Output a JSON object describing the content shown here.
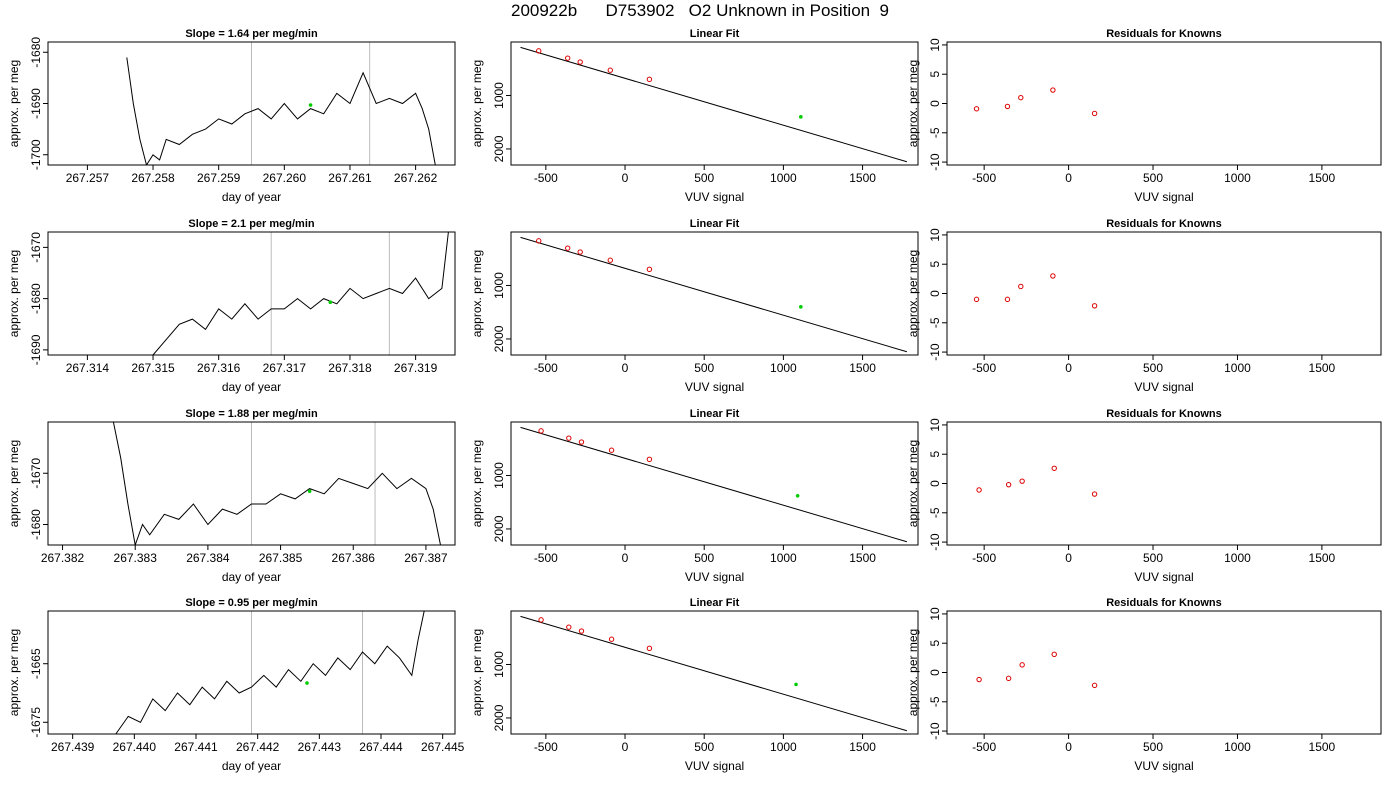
{
  "page_title": "200922b      D753902   O2 Unknown in Position  9",
  "chart_data": [
    {
      "type": "line",
      "panel": "series",
      "title": "Slope =  1.64  per meg/min",
      "xlabel": "day of year",
      "ylabel": "approx. per meg",
      "xlim": [
        267.2564,
        267.2626
      ],
      "ylim": [
        -1702,
        -1678
      ],
      "xticks": [
        267.257,
        267.258,
        267.259,
        267.26,
        267.261,
        267.262
      ],
      "xtick_labels": [
        "267.257",
        "267.258",
        "267.259",
        "267.260",
        "267.261",
        "267.262"
      ],
      "yticks": [
        -1700,
        -1690,
        -1680
      ],
      "ytick_labels": [
        "-1700",
        "-1690",
        "-1680"
      ],
      "vlines": [
        267.2595,
        267.2613
      ],
      "marker": {
        "x": 267.2604,
        "y": -1690.3,
        "color": "#00cc00"
      },
      "series": [
        {
          "x": [
            267.2576,
            267.2577,
            267.2578,
            267.2579,
            267.258,
            267.2581,
            267.2582,
            267.2584,
            267.2586,
            267.2588,
            267.259,
            267.2592,
            267.2594,
            267.2596,
            267.2598,
            267.26,
            267.2602,
            267.2604,
            267.2606,
            267.2608,
            267.261,
            267.2612,
            267.2614,
            267.2616,
            267.2618,
            267.262,
            267.2621,
            267.2622,
            267.2623
          ],
          "y": [
            -1681,
            -1690,
            -1697,
            -1702,
            -1700,
            -1701,
            -1697,
            -1698,
            -1696,
            -1695,
            -1693,
            -1694,
            -1692,
            -1691,
            -1693,
            -1690,
            -1693,
            -1691,
            -1692,
            -1688,
            -1690,
            -1684,
            -1690,
            -1689,
            -1690,
            -1688,
            -1691,
            -1695,
            -1702
          ]
        }
      ]
    },
    {
      "type": "line",
      "panel": "fit",
      "title": "Linear Fit",
      "xlabel": "VUV signal",
      "ylabel": "approx. per meg",
      "xlim": [
        -720,
        1850
      ],
      "ylim": [
        -2300,
        0
      ],
      "xticks": [
        -500,
        0,
        500,
        1000,
        1500
      ],
      "xtick_labels": [
        "-500",
        "0",
        "500",
        "1000",
        "1500"
      ],
      "yticks": [
        -2000,
        -1000
      ],
      "ytick_labels": [
        "2000",
        "1000"
      ],
      "line": [
        [
          -660,
          -100
        ],
        [
          1780,
          -2240
        ]
      ],
      "knowns": [
        [
          -545,
          -166
        ],
        [
          -362,
          -302
        ],
        [
          -283,
          -375
        ],
        [
          -93,
          -528
        ],
        [
          154,
          -698
        ]
      ],
      "unknown": [
        1110,
        -1399
      ]
    },
    {
      "type": "scatter",
      "panel": "residuals",
      "title": "Residuals for Knowns",
      "xlabel": "VUV signal",
      "ylabel": "approx. per meg",
      "xlim": [
        -720,
        1850
      ],
      "ylim": [
        -10.5,
        10.5
      ],
      "xticks": [
        -500,
        0,
        500,
        1000,
        1500
      ],
      "xtick_labels": [
        "-500",
        "0",
        "500",
        "1000",
        "1500"
      ],
      "yticks": [
        -10,
        -5,
        0,
        5,
        10
      ],
      "ytick_labels": [
        "-10",
        "-5",
        "0",
        "5",
        "10"
      ],
      "points": [
        [
          -545,
          -0.9
        ],
        [
          -362,
          -0.5
        ],
        [
          -283,
          1.0
        ],
        [
          -93,
          2.3
        ],
        [
          154,
          -1.7
        ]
      ]
    },
    {
      "type": "line",
      "panel": "series",
      "title": "Slope =  2.1  per meg/min",
      "xlabel": "day of year",
      "ylabel": "approx. per meg",
      "xlim": [
        267.3134,
        267.3196
      ],
      "ylim": [
        -1691,
        -1667
      ],
      "xticks": [
        267.314,
        267.315,
        267.316,
        267.317,
        267.318,
        267.319
      ],
      "xtick_labels": [
        "267.314",
        "267.315",
        "267.316",
        "267.317",
        "267.318",
        "267.319"
      ],
      "yticks": [
        -1690,
        -1680,
        -1670
      ],
      "ytick_labels": [
        "-1690",
        "-1680",
        "-1670"
      ],
      "vlines": [
        267.3168,
        267.3186
      ],
      "marker": {
        "x": 267.3177,
        "y": -1680.7,
        "color": "#00cc00"
      },
      "series": [
        {
          "x": [
            267.315,
            267.3152,
            267.3154,
            267.3156,
            267.3158,
            267.316,
            267.3162,
            267.3164,
            267.3166,
            267.3168,
            267.317,
            267.3172,
            267.3174,
            267.3176,
            267.3178,
            267.318,
            267.3182,
            267.3184,
            267.3186,
            267.3188,
            267.319,
            267.3192,
            267.3194,
            267.3195
          ],
          "y": [
            -1691,
            -1688,
            -1685,
            -1684,
            -1686,
            -1682,
            -1684,
            -1681,
            -1684,
            -1682,
            -1682,
            -1680,
            -1682,
            -1680,
            -1681,
            -1678,
            -1680,
            -1679,
            -1678,
            -1679,
            -1676,
            -1680,
            -1678,
            -1667
          ]
        }
      ]
    },
    {
      "type": "line",
      "panel": "fit",
      "title": "Linear Fit",
      "xlabel": "VUV signal",
      "ylabel": "approx. per meg",
      "xlim": [
        -720,
        1850
      ],
      "ylim": [
        -2300,
        0
      ],
      "xticks": [
        -500,
        0,
        500,
        1000,
        1500
      ],
      "xtick_labels": [
        "-500",
        "0",
        "500",
        "1000",
        "1500"
      ],
      "yticks": [
        -2000,
        -1000
      ],
      "ytick_labels": [
        "2000",
        "1000"
      ],
      "line": [
        [
          -660,
          -100
        ],
        [
          1780,
          -2240
        ]
      ],
      "knowns": [
        [
          -545,
          -166
        ],
        [
          -362,
          -302
        ],
        [
          -283,
          -375
        ],
        [
          -93,
          -528
        ],
        [
          154,
          -698
        ]
      ],
      "unknown": [
        1110,
        -1399
      ]
    },
    {
      "type": "scatter",
      "panel": "residuals",
      "title": "Residuals for Knowns",
      "xlabel": "VUV signal",
      "ylabel": "approx. per meg",
      "xlim": [
        -720,
        1850
      ],
      "ylim": [
        -10.5,
        10.5
      ],
      "xticks": [
        -500,
        0,
        500,
        1000,
        1500
      ],
      "xtick_labels": [
        "-500",
        "0",
        "500",
        "1000",
        "1500"
      ],
      "yticks": [
        -10,
        -5,
        0,
        5,
        10
      ],
      "ytick_labels": [
        "-10",
        "-5",
        "0",
        "5",
        "10"
      ],
      "points": [
        [
          -545,
          -1.0
        ],
        [
          -362,
          -1.0
        ],
        [
          -283,
          1.2
        ],
        [
          -93,
          3.0
        ],
        [
          154,
          -2.1
        ]
      ]
    },
    {
      "type": "line",
      "panel": "series",
      "title": "Slope =  1.88  per meg/min",
      "xlabel": "day of year",
      "ylabel": "approx. per meg",
      "xlim": [
        267.3818,
        267.3874
      ],
      "ylim": [
        -1684,
        -1660
      ],
      "xticks": [
        267.382,
        267.383,
        267.384,
        267.385,
        267.386,
        267.387
      ],
      "xtick_labels": [
        "267.382",
        "267.383",
        "267.384",
        "267.385",
        "267.386",
        "267.387"
      ],
      "yticks": [
        -1680,
        -1670
      ],
      "ytick_labels": [
        "-1680",
        "-1670"
      ],
      "vlines": [
        267.3846,
        267.3863
      ],
      "marker": {
        "x": 267.3854,
        "y": -1673.5,
        "color": "#00cc00"
      },
      "series": [
        {
          "x": [
            267.3827,
            267.3828,
            267.3829,
            267.383,
            267.3831,
            267.3832,
            267.3834,
            267.3836,
            267.3838,
            267.384,
            267.3842,
            267.3844,
            267.3846,
            267.3848,
            267.385,
            267.3852,
            267.3854,
            267.3856,
            267.3858,
            267.386,
            267.3862,
            267.3864,
            267.3866,
            267.3868,
            267.387,
            267.3871,
            267.3872
          ],
          "y": [
            -1660,
            -1667,
            -1676,
            -1684,
            -1680,
            -1682,
            -1678,
            -1679,
            -1676,
            -1680,
            -1677,
            -1678,
            -1676,
            -1676,
            -1674,
            -1675,
            -1673,
            -1674,
            -1671,
            -1672,
            -1673,
            -1670,
            -1673,
            -1671,
            -1673,
            -1677,
            -1684
          ]
        }
      ]
    },
    {
      "type": "line",
      "panel": "fit",
      "title": "Linear Fit",
      "xlabel": "VUV signal",
      "ylabel": "approx. per meg",
      "xlim": [
        -720,
        1850
      ],
      "ylim": [
        -2300,
        0
      ],
      "xticks": [
        -500,
        0,
        500,
        1000,
        1500
      ],
      "xtick_labels": [
        "-500",
        "0",
        "500",
        "1000",
        "1500"
      ],
      "yticks": [
        -2000,
        -1000
      ],
      "ytick_labels": [
        "2000",
        "1000"
      ],
      "line": [
        [
          -660,
          -100
        ],
        [
          1780,
          -2240
        ]
      ],
      "knowns": [
        [
          -530,
          -166
        ],
        [
          -355,
          -302
        ],
        [
          -275,
          -375
        ],
        [
          -85,
          -528
        ],
        [
          154,
          -698
        ]
      ],
      "unknown": [
        1090,
        -1380
      ]
    },
    {
      "type": "scatter",
      "panel": "residuals",
      "title": "Residuals for Knowns",
      "xlabel": "VUV signal",
      "ylabel": "approx. per meg",
      "xlim": [
        -720,
        1850
      ],
      "ylim": [
        -10.5,
        10.5
      ],
      "xticks": [
        -500,
        0,
        500,
        1000,
        1500
      ],
      "xtick_labels": [
        "-500",
        "0",
        "500",
        "1000",
        "1500"
      ],
      "yticks": [
        -10,
        -5,
        0,
        5,
        10
      ],
      "ytick_labels": [
        "-10",
        "-5",
        "0",
        "5",
        "10"
      ],
      "points": [
        [
          -530,
          -1.1
        ],
        [
          -355,
          -0.2
        ],
        [
          -275,
          0.4
        ],
        [
          -85,
          2.6
        ],
        [
          154,
          -1.8
        ]
      ]
    },
    {
      "type": "line",
      "panel": "series",
      "title": "Slope =  0.95  per meg/min",
      "xlabel": "day of year",
      "ylabel": "approx. per meg",
      "xlim": [
        267.4386,
        267.4452
      ],
      "ylim": [
        -1677,
        -1656
      ],
      "xticks": [
        267.439,
        267.44,
        267.441,
        267.442,
        267.443,
        267.444,
        267.445
      ],
      "xtick_labels": [
        "267.439",
        "267.440",
        "267.441",
        "267.442",
        "267.443",
        "267.444",
        "267.445"
      ],
      "yticks": [
        -1675,
        -1665
      ],
      "ytick_labels": [
        "-1675",
        "-1665"
      ],
      "vlines": [
        267.4419,
        267.4437
      ],
      "marker": {
        "x": 267.4428,
        "y": -1668.3,
        "color": "#00cc00"
      },
      "series": [
        {
          "x": [
            267.4397,
            267.4399,
            267.4401,
            267.4403,
            267.4405,
            267.4407,
            267.4409,
            267.4411,
            267.4413,
            267.4415,
            267.4417,
            267.4419,
            267.4421,
            267.4423,
            267.4425,
            267.4427,
            267.4429,
            267.4431,
            267.4433,
            267.4435,
            267.4437,
            267.4439,
            267.4441,
            267.4443,
            267.4445,
            267.4446,
            267.4447
          ],
          "y": [
            -1677,
            -1674,
            -1675,
            -1671,
            -1673,
            -1670,
            -1672,
            -1669,
            -1671,
            -1668,
            -1670,
            -1669,
            -1667,
            -1669,
            -1666,
            -1668,
            -1665,
            -1667,
            -1664,
            -1666,
            -1663,
            -1665,
            -1662,
            -1664,
            -1667,
            -1661,
            -1656
          ]
        }
      ]
    },
    {
      "type": "line",
      "panel": "fit",
      "title": "Linear Fit",
      "xlabel": "VUV signal",
      "ylabel": "approx. per meg",
      "xlim": [
        -720,
        1850
      ],
      "ylim": [
        -2300,
        0
      ],
      "xticks": [
        -500,
        0,
        500,
        1000,
        1500
      ],
      "xtick_labels": [
        "-500",
        "0",
        "500",
        "1000",
        "1500"
      ],
      "yticks": [
        -2000,
        -1000
      ],
      "ytick_labels": [
        "2000",
        "1000"
      ],
      "line": [
        [
          -660,
          -100
        ],
        [
          1780,
          -2240
        ]
      ],
      "knowns": [
        [
          -530,
          -166
        ],
        [
          -355,
          -302
        ],
        [
          -275,
          -375
        ],
        [
          -85,
          -528
        ],
        [
          154,
          -698
        ]
      ],
      "unknown": [
        1080,
        -1372
      ]
    },
    {
      "type": "scatter",
      "panel": "residuals",
      "title": "Residuals for Knowns",
      "xlabel": "VUV signal",
      "ylabel": "approx. per meg",
      "xlim": [
        -720,
        1850
      ],
      "ylim": [
        -10.5,
        10.5
      ],
      "xticks": [
        -500,
        0,
        500,
        1000,
        1500
      ],
      "xtick_labels": [
        "-500",
        "0",
        "500",
        "1000",
        "1500"
      ],
      "yticks": [
        -10,
        -5,
        0,
        5,
        10
      ],
      "ytick_labels": [
        "-10",
        "-5",
        "0",
        "5",
        "10"
      ],
      "points": [
        [
          -530,
          -1.2
        ],
        [
          -355,
          -1.0
        ],
        [
          -275,
          1.3
        ],
        [
          -85,
          3.1
        ],
        [
          154,
          -2.2
        ]
      ]
    }
  ]
}
